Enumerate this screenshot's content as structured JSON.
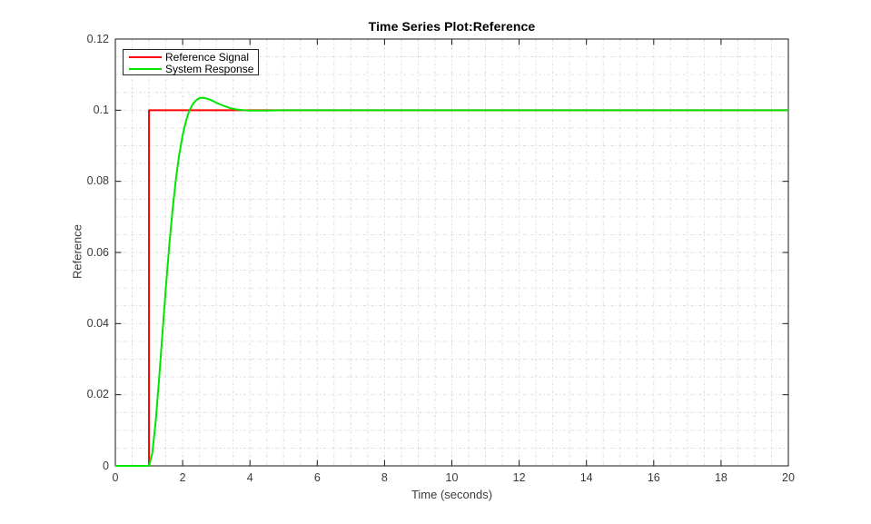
{
  "figure": {
    "background_color": "#ffffff",
    "axis_color": "#1a1a1a",
    "grid_color": "#d9d9d9"
  },
  "chart_data": {
    "type": "line",
    "title": "Time Series Plot:Reference",
    "xlabel": "Time (seconds)",
    "ylabel": "Reference",
    "xlim": [
      0,
      20
    ],
    "ylim": [
      0,
      0.12
    ],
    "grid": true,
    "minor_grid": {
      "x_step": 0.5,
      "y_step": 0.005,
      "style": "dashed"
    },
    "xticks": {
      "values": [
        0,
        2,
        4,
        6,
        8,
        10,
        12,
        14,
        16,
        18,
        20
      ],
      "labels": [
        "0",
        "2",
        "4",
        "6",
        "8",
        "10",
        "12",
        "14",
        "16",
        "18",
        "20"
      ]
    },
    "yticks": {
      "values": [
        0,
        0.02,
        0.04,
        0.06,
        0.08,
        0.1,
        0.12
      ],
      "labels": [
        "0",
        "0.02",
        "0.04",
        "0.06",
        "0.08",
        "0.1",
        "0.12"
      ]
    },
    "legend": {
      "position": "top-left",
      "entries": [
        {
          "label": "Reference Signal",
          "color": "#ff0000"
        },
        {
          "label": "System Response",
          "color": "#00e600"
        }
      ]
    },
    "series": [
      {
        "name": "Reference Signal",
        "color": "#ff0000",
        "line_width": 2,
        "points": [
          [
            0,
            0
          ],
          [
            1,
            0
          ],
          [
            1,
            0.1
          ],
          [
            20,
            0.1
          ]
        ]
      },
      {
        "name": "System Response",
        "color": "#00e600",
        "line_width": 2,
        "points": [
          [
            0,
            0
          ],
          [
            1,
            0
          ],
          [
            1.1,
            0.0037
          ],
          [
            1.2,
            0.0126
          ],
          [
            1.3,
            0.0244
          ],
          [
            1.4,
            0.0373
          ],
          [
            1.5,
            0.05
          ],
          [
            1.6,
            0.0617
          ],
          [
            1.7,
            0.072
          ],
          [
            1.8,
            0.0806
          ],
          [
            1.9,
            0.0876
          ],
          [
            2.0,
            0.093
          ],
          [
            2.1,
            0.097
          ],
          [
            2.2,
            0.0999
          ],
          [
            2.3,
            0.1017
          ],
          [
            2.4,
            0.1028
          ],
          [
            2.5,
            0.1034
          ],
          [
            2.6,
            0.1035
          ],
          [
            2.7,
            0.1033
          ],
          [
            2.8,
            0.103
          ],
          [
            2.9,
            0.1026
          ],
          [
            3.0,
            0.1021
          ],
          [
            3.2,
            0.1013
          ],
          [
            3.4,
            0.1006
          ],
          [
            3.6,
            0.1002
          ],
          [
            3.8,
            0.1
          ],
          [
            4.0,
            0.0999
          ],
          [
            4.5,
            0.0999
          ],
          [
            5,
            0.1
          ],
          [
            6,
            0.1
          ],
          [
            8,
            0.1
          ],
          [
            10,
            0.1
          ],
          [
            12,
            0.1
          ],
          [
            14,
            0.1
          ],
          [
            16,
            0.1
          ],
          [
            18,
            0.1
          ],
          [
            20,
            0.1
          ]
        ]
      }
    ]
  }
}
